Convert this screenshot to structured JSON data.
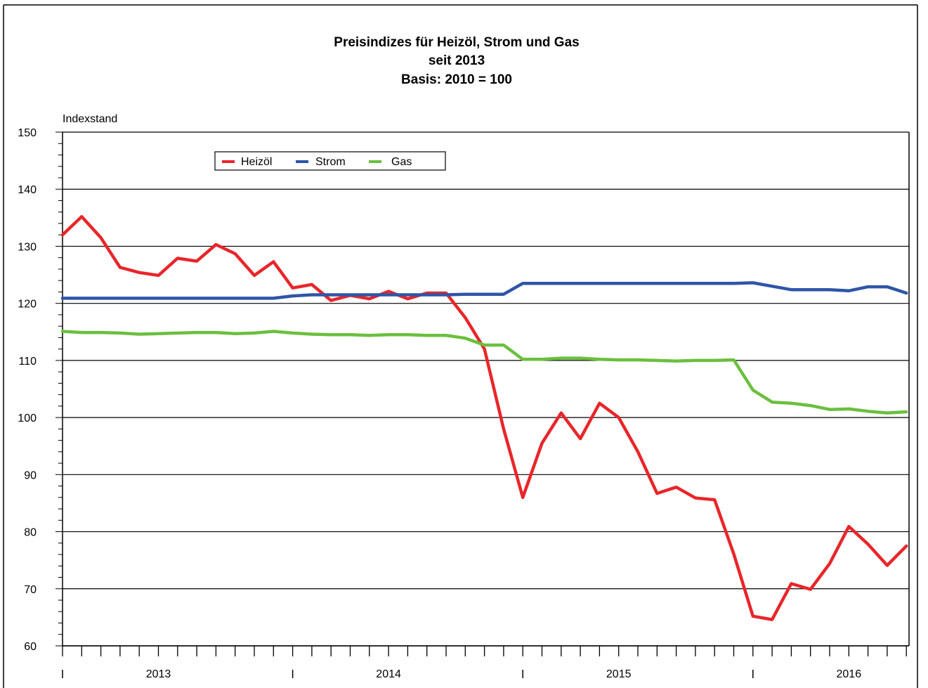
{
  "chart_data": {
    "type": "line",
    "title_lines": [
      "Preisindizes für Heizöl, Strom und Gas",
      "seit 2013",
      "Basis: 2010 = 100"
    ],
    "ylabel": "Indexstand",
    "xlabel": "",
    "ylim": [
      60,
      150
    ],
    "yticks": [
      60,
      70,
      80,
      90,
      100,
      110,
      120,
      130,
      140,
      150
    ],
    "grid": true,
    "legend_position": "top-left",
    "x_months": [
      "2013-01",
      "2013-02",
      "2013-03",
      "2013-04",
      "2013-05",
      "2013-06",
      "2013-07",
      "2013-08",
      "2013-09",
      "2013-10",
      "2013-11",
      "2013-12",
      "2014-01",
      "2014-02",
      "2014-03",
      "2014-04",
      "2014-05",
      "2014-06",
      "2014-07",
      "2014-08",
      "2014-09",
      "2014-10",
      "2014-11",
      "2014-12",
      "2015-01",
      "2015-02",
      "2015-03",
      "2015-04",
      "2015-05",
      "2015-06",
      "2015-07",
      "2015-08",
      "2015-09",
      "2015-10",
      "2015-11",
      "2015-12",
      "2016-01",
      "2016-02",
      "2016-03",
      "2016-04",
      "2016-05",
      "2016-06",
      "2016-07",
      "2016-08",
      "2016-09"
    ],
    "year_labels": [
      "2013",
      "2014",
      "2015",
      "2016"
    ],
    "series": [
      {
        "name": "Heizöl",
        "color": "#e8262a",
        "values": [
          132.0,
          135.2,
          131.5,
          126.3,
          125.4,
          124.9,
          127.9,
          127.4,
          130.3,
          128.7,
          124.9,
          127.3,
          122.7,
          123.3,
          120.5,
          121.4,
          120.8,
          122.1,
          120.8,
          121.8,
          121.8,
          117.5,
          112.0,
          98.0,
          86.0,
          95.5,
          100.8,
          96.3,
          102.5,
          100.0,
          94.0,
          86.7,
          87.8,
          85.9,
          85.6,
          76.1,
          65.2,
          64.6,
          70.9,
          69.9,
          74.4,
          80.9,
          77.8,
          74.1,
          77.5
        ]
      },
      {
        "name": "Strom",
        "color": "#2f55a8",
        "values": [
          120.9,
          120.9,
          120.9,
          120.9,
          120.9,
          120.9,
          120.9,
          120.9,
          120.9,
          120.9,
          120.9,
          120.9,
          121.3,
          121.5,
          121.5,
          121.5,
          121.5,
          121.5,
          121.5,
          121.5,
          121.5,
          121.6,
          121.6,
          121.6,
          123.5,
          123.5,
          123.5,
          123.5,
          123.5,
          123.5,
          123.5,
          123.5,
          123.5,
          123.5,
          123.5,
          123.5,
          123.6,
          123.0,
          122.4,
          122.4,
          122.4,
          122.2,
          122.9,
          122.9,
          121.8
        ]
      },
      {
        "name": "Gas",
        "color": "#6bbf3e",
        "values": [
          115.1,
          114.9,
          114.9,
          114.8,
          114.6,
          114.7,
          114.8,
          114.9,
          114.9,
          114.7,
          114.8,
          115.1,
          114.8,
          114.6,
          114.5,
          114.5,
          114.4,
          114.5,
          114.5,
          114.4,
          114.4,
          113.9,
          112.7,
          112.7,
          110.2,
          110.2,
          110.4,
          110.4,
          110.2,
          110.1,
          110.1,
          110.0,
          109.9,
          110.0,
          110.0,
          110.1,
          104.8,
          102.7,
          102.5,
          102.1,
          101.4,
          101.5,
          101.1,
          100.8,
          101.0
        ]
      }
    ]
  }
}
